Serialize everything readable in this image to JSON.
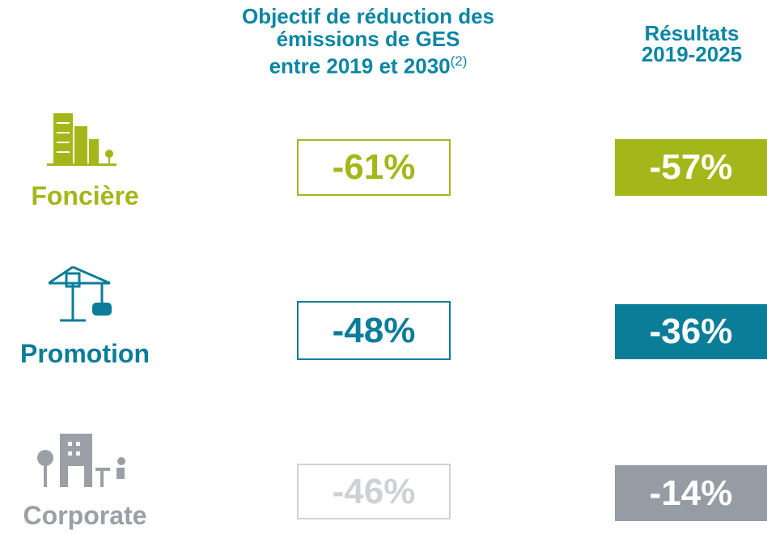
{
  "header": {
    "target_title": [
      "Objectif de réduction des",
      "émissions de GES",
      "entre 2019 et 2030"
    ],
    "target_note": "(2)",
    "results_title": [
      "Résultats",
      "2019-2025"
    ]
  },
  "rows": [
    {
      "label": "Foncière",
      "target": "-61%",
      "result": "-57%"
    },
    {
      "label": "Promotion",
      "target": "-48%",
      "result": "-36%"
    },
    {
      "label": "Corporate",
      "target": "-46%",
      "result": "-14%"
    }
  ]
}
